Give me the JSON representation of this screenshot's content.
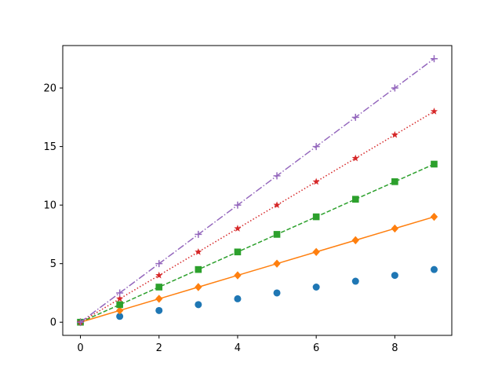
{
  "chart_data": {
    "type": "line",
    "title": "",
    "xlabel": "",
    "ylabel": "",
    "xlim": [
      -0.45,
      9.45
    ],
    "ylim": [
      -1.125,
      23.625
    ],
    "x_ticks": [
      0,
      2,
      4,
      6,
      8
    ],
    "y_ticks": [
      0,
      5,
      10,
      15,
      20
    ],
    "grid": false,
    "legend": "none",
    "x": [
      0,
      1,
      2,
      3,
      4,
      5,
      6,
      7,
      8,
      9
    ],
    "series": [
      {
        "values": [
          0,
          0.5,
          1,
          1.5,
          2,
          2.5,
          3,
          3.5,
          4,
          4.5
        ],
        "color": "#1f77b4",
        "line": "none",
        "marker": "circle"
      },
      {
        "values": [
          0,
          1,
          2,
          3,
          4,
          5,
          6,
          7,
          8,
          9
        ],
        "color": "#ff7f0e",
        "line": "solid",
        "marker": "diamond"
      },
      {
        "values": [
          0,
          1.5,
          3,
          4.5,
          6,
          7.5,
          9,
          10.5,
          12,
          13.5
        ],
        "color": "#2ca02c",
        "line": "dashed",
        "marker": "square"
      },
      {
        "values": [
          0,
          2,
          4,
          6,
          8,
          10,
          12,
          14,
          16,
          18
        ],
        "color": "#d62728",
        "line": "dotted",
        "marker": "star"
      },
      {
        "values": [
          0,
          2.5,
          5,
          7.5,
          10,
          12.5,
          15,
          17.5,
          20,
          22.5
        ],
        "color": "#9467bd",
        "line": "dashdot",
        "marker": "plus"
      }
    ]
  }
}
